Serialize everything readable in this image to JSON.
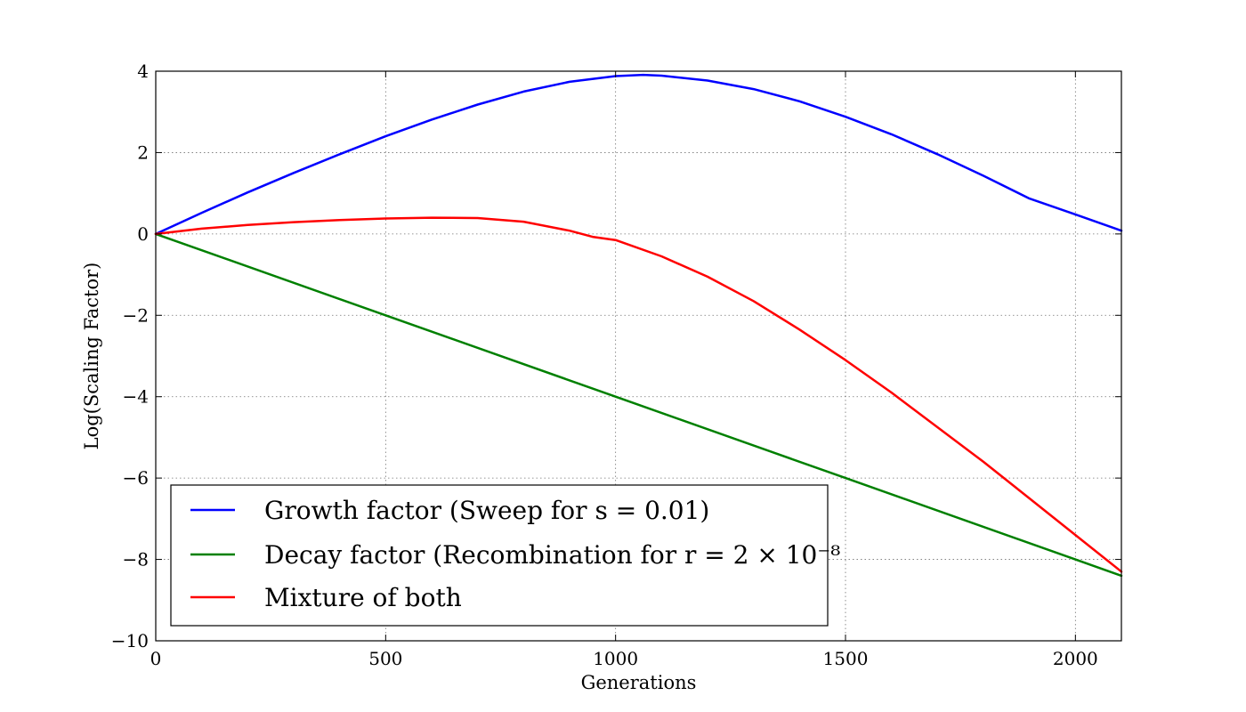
{
  "chart_data": {
    "type": "line",
    "title": "",
    "xlabel": "Generations",
    "ylabel": "Log(Scaling Factor)",
    "xlim": [
      0,
      2100
    ],
    "ylim": [
      -10,
      4
    ],
    "x_ticks": [
      0,
      500,
      1000,
      1500,
      2000
    ],
    "x_tick_labels": [
      "0",
      "500",
      "1000",
      "1500",
      "2000"
    ],
    "y_ticks": [
      4,
      2,
      0,
      -2,
      -4,
      -6,
      -8,
      -10
    ],
    "y_tick_labels": [
      "4",
      "2",
      "0",
      "−2",
      "−4",
      "−6",
      "−8",
      "−10"
    ],
    "grid": true,
    "legend_position": "lower-left",
    "series": [
      {
        "name": "Growth factor (Sweep for s = 0.01)",
        "color": "#0000ff",
        "x": [
          0,
          100,
          200,
          300,
          400,
          500,
          600,
          700,
          800,
          900,
          1000,
          1060,
          1100,
          1200,
          1300,
          1400,
          1500,
          1600,
          1700,
          1800,
          1900,
          2000,
          2100
        ],
        "y": [
          0,
          0.52,
          1.02,
          1.5,
          1.96,
          2.4,
          2.81,
          3.18,
          3.5,
          3.74,
          3.88,
          3.91,
          3.89,
          3.77,
          3.56,
          3.26,
          2.88,
          2.45,
          1.96,
          1.43,
          0.87,
          0.48,
          0.08
        ]
      },
      {
        "name": "Decay factor (Recombination for r = 2 × 10⁻⁸",
        "color": "#008000",
        "x": [
          0,
          500,
          1000,
          1500,
          2000,
          2100
        ],
        "y": [
          0,
          -2.0,
          -4.0,
          -6.0,
          -8.0,
          -8.4
        ]
      },
      {
        "name": "Mixture of both",
        "color": "#ff0000",
        "x": [
          0,
          100,
          200,
          300,
          400,
          500,
          600,
          700,
          800,
          900,
          950,
          1000,
          1100,
          1200,
          1300,
          1400,
          1500,
          1600,
          1700,
          1800,
          1900,
          2000,
          2100
        ],
        "y": [
          0,
          0.13,
          0.22,
          0.29,
          0.34,
          0.38,
          0.4,
          0.39,
          0.3,
          0.08,
          -0.07,
          -0.15,
          -0.55,
          -1.05,
          -1.65,
          -2.35,
          -3.1,
          -3.9,
          -4.75,
          -5.6,
          -6.5,
          -7.4,
          -8.3
        ]
      }
    ]
  }
}
